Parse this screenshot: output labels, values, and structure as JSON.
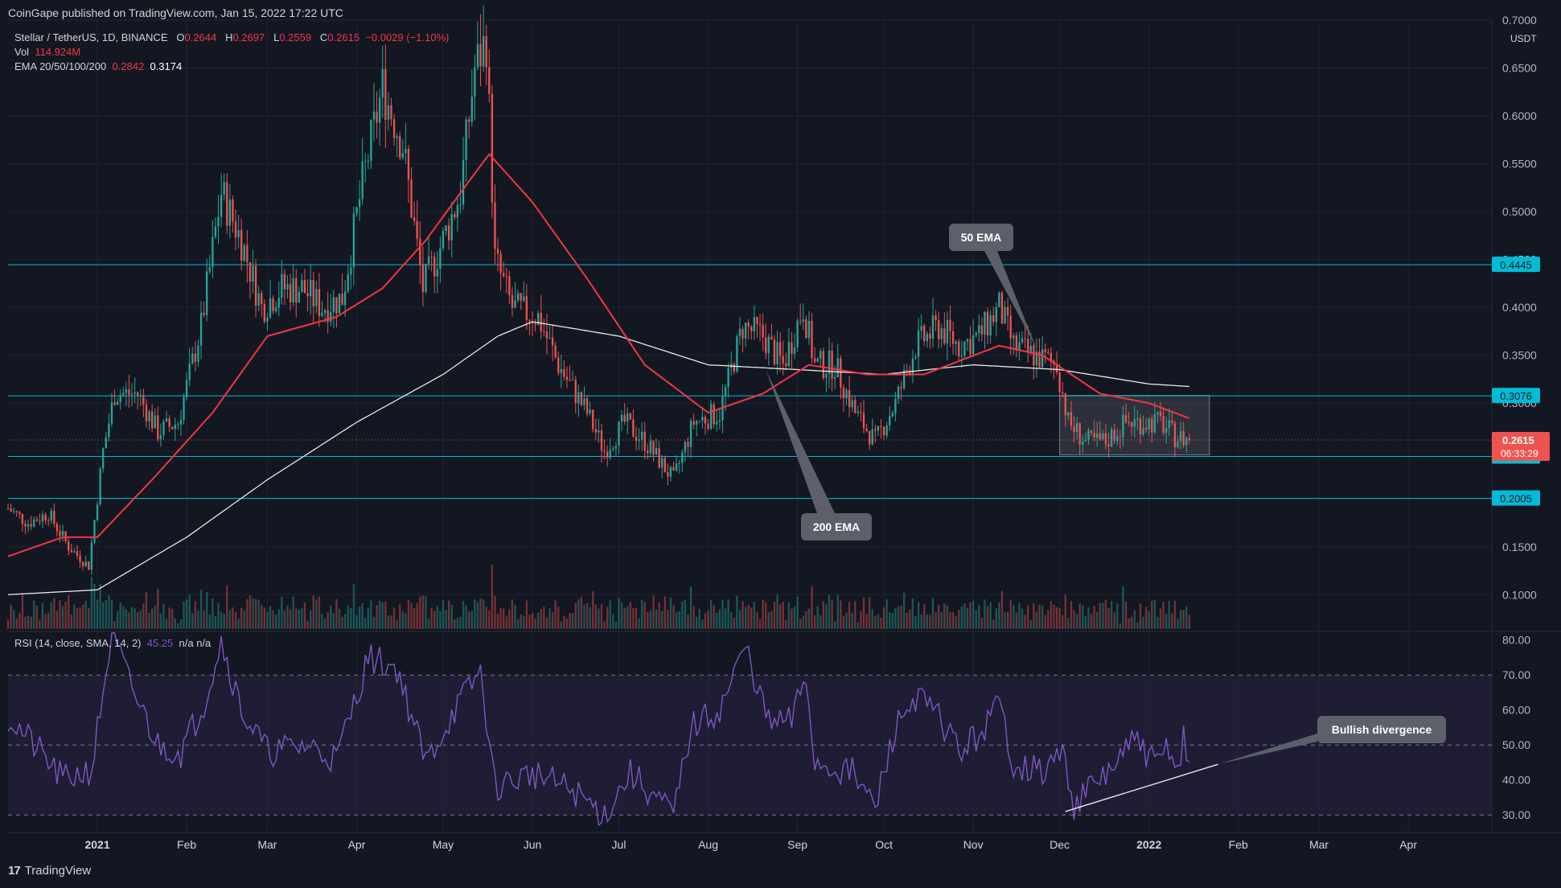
{
  "published": "CoinGape published on TradingView.com, Jan 15, 2022 17:22 UTC",
  "legend": {
    "symbol": "Stellar / TetherUS, 1D, BINANCE",
    "o_label": "O",
    "o": "0.2644",
    "h_label": "H",
    "h": "0.2697",
    "l_label": "L",
    "l": "0.2559",
    "c_label": "C",
    "c": "0.2615",
    "change": "−0.0029 (−1.10%)",
    "vol_label": "Vol",
    "vol": "114.924M",
    "ema_label": "EMA 20/50/100/200",
    "ema1": "0.2842",
    "ema2": "0.3174"
  },
  "rsi_legend": {
    "label": "RSI (14, close, SMA, 14, 2)",
    "value": "45.25",
    "na": "n/a  n/a"
  },
  "footer": {
    "brand": "TradingView",
    "logo": "17"
  },
  "colors": {
    "background": "#131722",
    "up": "#26a69a",
    "down": "#ef5350",
    "ema50": "#f23645",
    "ema200": "#e8e8e8",
    "level": "#00bcd4",
    "rsi": "#7e57c2",
    "rsi_band": "#2a2344"
  },
  "chart_data": [
    {
      "type": "candlestick",
      "title": "Stellar / TetherUS, 1D, BINANCE",
      "y_unit": "USDT",
      "ylim": [
        0.07,
        0.7
      ],
      "y_ticks": [
        "0.1000",
        "0.1500",
        "0.2000",
        "0.2500",
        "0.3000",
        "0.3500",
        "0.4000",
        "0.4500",
        "0.5000",
        "0.5500",
        "0.6000",
        "0.6500",
        "0.7000"
      ],
      "x_labels": [
        "2021",
        "Feb",
        "Mar",
        "Apr",
        "May",
        "Jun",
        "Jul",
        "Aug",
        "Sep",
        "Oct",
        "Nov",
        "Dec",
        "2022",
        "Feb",
        "Mar",
        "Apr"
      ],
      "x_label_dates": [
        "2021-01-01",
        "2021-02-01",
        "2021-03-01",
        "2021-04-01",
        "2021-05-01",
        "2021-06-01",
        "2021-07-01",
        "2021-08-01",
        "2021-09-01",
        "2021-10-01",
        "2021-11-01",
        "2021-12-01",
        "2022-01-01",
        "2022-02-01",
        "2022-03-01",
        "2022-04-01"
      ],
      "x_range": [
        "2020-12-01",
        "2022-04-30"
      ],
      "price_anchors": [
        [
          "2020-12-01",
          0.19
        ],
        [
          "2020-12-08",
          0.175
        ],
        [
          "2020-12-15",
          0.185
        ],
        [
          "2020-12-22",
          0.15
        ],
        [
          "2020-12-29",
          0.13
        ],
        [
          "2021-01-03",
          0.25
        ],
        [
          "2021-01-07",
          0.31
        ],
        [
          "2021-01-15",
          0.31
        ],
        [
          "2021-01-22",
          0.27
        ],
        [
          "2021-01-29",
          0.28
        ],
        [
          "2021-02-06",
          0.38
        ],
        [
          "2021-02-13",
          0.52
        ],
        [
          "2021-02-20",
          0.47
        ],
        [
          "2021-02-27",
          0.4
        ],
        [
          "2021-03-06",
          0.42
        ],
        [
          "2021-03-13",
          0.42
        ],
        [
          "2021-03-20",
          0.4
        ],
        [
          "2021-03-27",
          0.41
        ],
        [
          "2021-04-03",
          0.53
        ],
        [
          "2021-04-10",
          0.63
        ],
        [
          "2021-04-17",
          0.57
        ],
        [
          "2021-04-24",
          0.42
        ],
        [
          "2021-05-01",
          0.47
        ],
        [
          "2021-05-07",
          0.52
        ],
        [
          "2021-05-12",
          0.65
        ],
        [
          "2021-05-16",
          0.68
        ],
        [
          "2021-05-19",
          0.45
        ],
        [
          "2021-05-25",
          0.4
        ],
        [
          "2021-06-03",
          0.39
        ],
        [
          "2021-06-10",
          0.34
        ],
        [
          "2021-06-20",
          0.29
        ],
        [
          "2021-06-26",
          0.25
        ],
        [
          "2021-07-03",
          0.28
        ],
        [
          "2021-07-10",
          0.26
        ],
        [
          "2021-07-20",
          0.22
        ],
        [
          "2021-07-27",
          0.28
        ],
        [
          "2021-08-05",
          0.29
        ],
        [
          "2021-08-13",
          0.38
        ],
        [
          "2021-08-20",
          0.37
        ],
        [
          "2021-08-27",
          0.34
        ],
        [
          "2021-09-03",
          0.4
        ],
        [
          "2021-09-07",
          0.34
        ],
        [
          "2021-09-14",
          0.34
        ],
        [
          "2021-09-21",
          0.29
        ],
        [
          "2021-09-28",
          0.26
        ],
        [
          "2021-10-05",
          0.3
        ],
        [
          "2021-10-12",
          0.36
        ],
        [
          "2021-10-20",
          0.38
        ],
        [
          "2021-10-27",
          0.36
        ],
        [
          "2021-11-03",
          0.37
        ],
        [
          "2021-11-10",
          0.4
        ],
        [
          "2021-11-15",
          0.36
        ],
        [
          "2021-11-22",
          0.35
        ],
        [
          "2021-11-30",
          0.34
        ],
        [
          "2021-12-04",
          0.28
        ],
        [
          "2021-12-10",
          0.26
        ],
        [
          "2021-12-17",
          0.26
        ],
        [
          "2021-12-24",
          0.28
        ],
        [
          "2021-12-30",
          0.28
        ],
        [
          "2022-01-05",
          0.28
        ],
        [
          "2022-01-10",
          0.265
        ],
        [
          "2022-01-15",
          0.2615
        ]
      ],
      "ema50_anchors": [
        [
          "2020-12-01",
          0.14
        ],
        [
          "2020-12-20",
          0.16
        ],
        [
          "2021-01-01",
          0.16
        ],
        [
          "2021-01-20",
          0.22
        ],
        [
          "2021-02-10",
          0.29
        ],
        [
          "2021-03-01",
          0.37
        ],
        [
          "2021-03-25",
          0.39
        ],
        [
          "2021-04-10",
          0.42
        ],
        [
          "2021-04-25",
          0.47
        ],
        [
          "2021-05-12",
          0.54
        ],
        [
          "2021-05-17",
          0.56
        ],
        [
          "2021-06-01",
          0.51
        ],
        [
          "2021-06-20",
          0.43
        ],
        [
          "2021-07-10",
          0.34
        ],
        [
          "2021-08-01",
          0.29
        ],
        [
          "2021-08-20",
          0.31
        ],
        [
          "2021-09-05",
          0.34
        ],
        [
          "2021-09-25",
          0.33
        ],
        [
          "2021-10-15",
          0.33
        ],
        [
          "2021-11-10",
          0.36
        ],
        [
          "2021-11-25",
          0.35
        ],
        [
          "2021-12-15",
          0.31
        ],
        [
          "2022-01-01",
          0.3
        ],
        [
          "2022-01-15",
          0.2842
        ]
      ],
      "ema200_anchors": [
        [
          "2020-12-01",
          0.1
        ],
        [
          "2021-01-01",
          0.105
        ],
        [
          "2021-02-01",
          0.16
        ],
        [
          "2021-03-01",
          0.22
        ],
        [
          "2021-04-01",
          0.28
        ],
        [
          "2021-05-01",
          0.33
        ],
        [
          "2021-05-20",
          0.37
        ],
        [
          "2021-06-01",
          0.385
        ],
        [
          "2021-07-01",
          0.37
        ],
        [
          "2021-08-01",
          0.34
        ],
        [
          "2021-09-01",
          0.335
        ],
        [
          "2021-10-01",
          0.33
        ],
        [
          "2021-11-01",
          0.34
        ],
        [
          "2021-12-01",
          0.335
        ],
        [
          "2022-01-01",
          0.32
        ],
        [
          "2022-01-15",
          0.3174
        ]
      ],
      "horizontal_levels": [
        0.4445,
        0.3076,
        0.2443,
        0.2005
      ],
      "last_price": 0.2615,
      "last_price_label": "0.2615",
      "countdown_label": "06:33:29",
      "level_labels": [
        "0.4445",
        "0.3076",
        "0.2443",
        "0.2005"
      ],
      "consolidation_box": {
        "start": "2021-12-01",
        "end": "2022-01-22",
        "high": 0.308,
        "low": 0.246
      },
      "annotations": [
        {
          "text": "50 EMA",
          "target_date": "2021-11-23",
          "target_value": 0.357
        },
        {
          "text": "200 EMA",
          "target_date": "2021-08-21",
          "target_value": 0.335
        }
      ]
    },
    {
      "type": "line",
      "title": "RSI (14, close, SMA, 14, 2)",
      "ylim": [
        25,
        82
      ],
      "y_ticks": [
        "30.00",
        "40.00",
        "50.00",
        "60.00",
        "70.00",
        "80.00"
      ],
      "band": [
        30,
        70
      ],
      "midline": 50,
      "last_value": 45.25,
      "rsi_anchors": [
        [
          "2020-12-01",
          58
        ],
        [
          "2020-12-10",
          50
        ],
        [
          "2020-12-20",
          40
        ],
        [
          "2020-12-30",
          43
        ],
        [
          "2021-01-06",
          82
        ],
        [
          "2021-01-12",
          68
        ],
        [
          "2021-01-22",
          50
        ],
        [
          "2021-01-30",
          48
        ],
        [
          "2021-02-07",
          62
        ],
        [
          "2021-02-13",
          80
        ],
        [
          "2021-02-20",
          60
        ],
        [
          "2021-03-01",
          48
        ],
        [
          "2021-03-15",
          50
        ],
        [
          "2021-03-25",
          46
        ],
        [
          "2021-04-05",
          75
        ],
        [
          "2021-04-15",
          72
        ],
        [
          "2021-04-25",
          45
        ],
        [
          "2021-05-05",
          60
        ],
        [
          "2021-05-14",
          71
        ],
        [
          "2021-05-19",
          38
        ],
        [
          "2021-06-01",
          42
        ],
        [
          "2021-06-15",
          37
        ],
        [
          "2021-06-26",
          30
        ],
        [
          "2021-07-05",
          42
        ],
        [
          "2021-07-20",
          30
        ],
        [
          "2021-07-26",
          55
        ],
        [
          "2021-08-05",
          60
        ],
        [
          "2021-08-14",
          78
        ],
        [
          "2021-08-22",
          56
        ],
        [
          "2021-08-30",
          57
        ],
        [
          "2021-09-04",
          70
        ],
        [
          "2021-09-07",
          45
        ],
        [
          "2021-09-20",
          42
        ],
        [
          "2021-09-28",
          32
        ],
        [
          "2021-10-05",
          55
        ],
        [
          "2021-10-12",
          64
        ],
        [
          "2021-10-20",
          58
        ],
        [
          "2021-10-28",
          48
        ],
        [
          "2021-11-05",
          55
        ],
        [
          "2021-11-10",
          62
        ],
        [
          "2021-11-15",
          45
        ],
        [
          "2021-11-25",
          42
        ],
        [
          "2021-12-02",
          48
        ],
        [
          "2021-12-06",
          33
        ],
        [
          "2021-12-15",
          40
        ],
        [
          "2021-12-22",
          46
        ],
        [
          "2021-12-28",
          52
        ],
        [
          "2022-01-03",
          44
        ],
        [
          "2022-01-08",
          50
        ],
        [
          "2022-01-11",
          42
        ],
        [
          "2022-01-13",
          53
        ],
        [
          "2022-01-15",
          45.25
        ]
      ],
      "divergence_line": {
        "start": [
          "2021-12-03",
          31
        ],
        "end": [
          "2022-01-25",
          44.5
        ]
      },
      "annotation": {
        "text": "Bullish divergence"
      }
    }
  ]
}
